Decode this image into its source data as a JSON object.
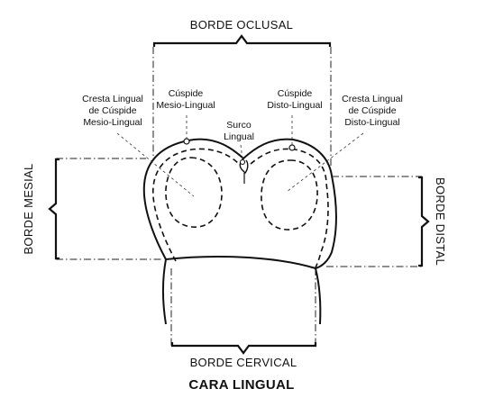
{
  "title": "CARA LINGUAL",
  "borders": {
    "top": "BORDE OCLUSAL",
    "bottom": "BORDE CERVICAL",
    "left": "BORDE MESIAL",
    "right": "BORDE DISTAL"
  },
  "labels": {
    "cresta_mesio": [
      "Cresta Lingual",
      "de Cúspide",
      "Mesio-Lingual"
    ],
    "cuspide_mesio": [
      "Cúspide",
      "Mesio-Lingual"
    ],
    "surco": [
      "Surco",
      "Lingual"
    ],
    "cuspide_disto": [
      "Cúspide",
      "Disto-Lingual"
    ],
    "cresta_disto": [
      "Cresta Lingual",
      "de Cúspide",
      "Disto-Lingual"
    ]
  }
}
